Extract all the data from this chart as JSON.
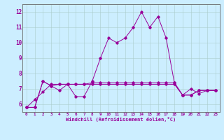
{
  "xlabel": "Windchill (Refroidissement éolien,°C)",
  "xlim": [
    -0.5,
    23.5
  ],
  "ylim": [
    5.5,
    12.5
  ],
  "yticks": [
    6,
    7,
    8,
    9,
    10,
    11,
    12
  ],
  "xticks": [
    0,
    1,
    2,
    3,
    4,
    5,
    6,
    7,
    8,
    9,
    10,
    11,
    12,
    13,
    14,
    15,
    16,
    17,
    18,
    19,
    20,
    21,
    22,
    23
  ],
  "bg_color": "#cceeff",
  "line_color": "#990099",
  "grid_color": "#aacccc",
  "lines": [
    [
      5.8,
      5.8,
      7.5,
      7.2,
      6.9,
      7.3,
      6.5,
      6.5,
      7.5,
      9.0,
      10.3,
      10.0,
      10.3,
      11.0,
      12.0,
      11.0,
      11.7,
      10.3,
      7.4,
      6.6,
      7.0,
      6.7,
      6.9,
      6.9
    ],
    [
      5.8,
      5.8,
      7.5,
      7.2,
      7.3,
      7.3,
      7.3,
      7.3,
      7.4,
      7.4,
      7.4,
      7.4,
      7.4,
      7.4,
      7.4,
      7.4,
      7.4,
      7.4,
      7.4,
      6.6,
      6.6,
      6.9,
      6.9,
      6.9
    ],
    [
      5.8,
      6.3,
      6.8,
      7.3,
      7.3,
      7.3,
      7.3,
      7.3,
      7.3,
      7.3,
      7.3,
      7.3,
      7.3,
      7.3,
      7.3,
      7.3,
      7.3,
      7.3,
      7.3,
      6.6,
      6.6,
      6.9,
      6.9,
      6.9
    ]
  ]
}
